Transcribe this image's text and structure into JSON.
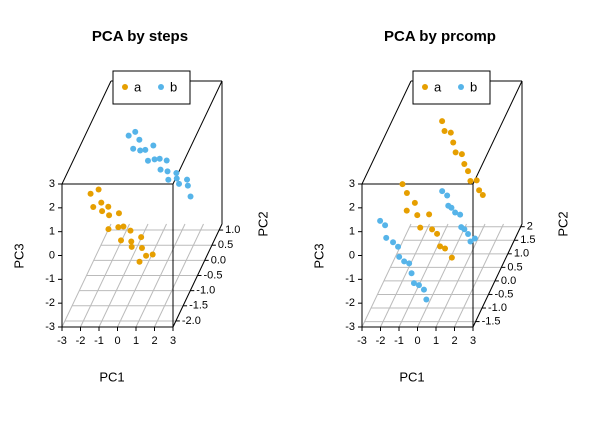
{
  "chart_data": [
    {
      "type": "scatter3d",
      "title": "PCA by steps",
      "xlabel": "PC1",
      "ylabel": "PC2",
      "zlabel": "PC3",
      "xlim": [
        -3,
        3
      ],
      "xticks": [
        -3,
        -2,
        -1,
        0,
        1,
        2,
        3
      ],
      "ylim": [
        -2.2,
        1.2
      ],
      "yticks": [
        {
          "value": -2,
          "label": "-2.0"
        },
        -1.5,
        {
          "value": -1,
          "label": "-1.0"
        },
        -0.5,
        {
          "value": 0,
          "label": "0.0"
        },
        0.5,
        {
          "value": 1,
          "label": "1.0"
        }
      ],
      "zlim": [
        -3,
        3
      ],
      "zticks": [
        -3,
        -2,
        -1,
        0,
        1,
        2,
        3
      ],
      "grid": true,
      "legend": "top",
      "series": [
        {
          "name": "a",
          "color": "#E69F00",
          "x": [
            -2.0,
            -1.8,
            -1.7,
            -1.5,
            -1.3,
            -1.2,
            -1.0,
            -0.8,
            -0.7,
            -0.5,
            -0.3,
            -0.2,
            0.0,
            0.2,
            0.3,
            0.5,
            0.7,
            0.8,
            1.0,
            1.2
          ],
          "y": [
            -1.5,
            -1.2,
            -1.7,
            -1.4,
            -1.6,
            -1.3,
            -1.5,
            -1.8,
            -1.2,
            -1.5,
            -1.4,
            -1.7,
            -1.3,
            -1.5,
            -1.6,
            -1.2,
            -1.4,
            -1.7,
            -1.5,
            -1.3
          ],
          "z": [
            1.7,
            1.5,
            1.4,
            1.2,
            1.1,
            0.9,
            0.8,
            0.6,
            0.5,
            0.3,
            0.2,
            0.0,
            -0.1,
            -0.3,
            -0.4,
            -0.5,
            -0.7,
            -0.9,
            -0.9,
            -1.1
          ]
        },
        {
          "name": "b",
          "color": "#56B4E9",
          "x": [
            -1.5,
            -1.3,
            -1.1,
            -1.0,
            -0.8,
            -0.6,
            -0.4,
            -0.3,
            -0.1,
            0.1,
            0.3,
            0.4,
            0.6,
            0.8,
            1.0,
            1.1,
            1.3,
            1.5,
            1.7,
            2.0
          ],
          "y": [
            0.5,
            0.7,
            0.3,
            0.6,
            0.4,
            0.5,
            0.8,
            0.3,
            0.5,
            0.6,
            0.4,
            0.7,
            0.5,
            0.3,
            0.6,
            0.5,
            0.4,
            0.7,
            0.5,
            0.3
          ],
          "z": [
            1.6,
            1.5,
            1.3,
            1.3,
            1.1,
            1.0,
            0.8,
            0.8,
            0.6,
            0.5,
            0.3,
            0.3,
            0.1,
            0.0,
            -0.1,
            -0.2,
            -0.3,
            -0.5,
            -0.5,
            -0.7
          ]
        }
      ]
    },
    {
      "type": "scatter3d",
      "title": "PCA by prcomp",
      "xlabel": "PC1",
      "ylabel": "PC2",
      "zlabel": "PC3",
      "xlim": [
        -3,
        3
      ],
      "xticks": [
        -3,
        -2,
        -1,
        0,
        1,
        2,
        3
      ],
      "ylim": [
        -1.7,
        2.1
      ],
      "yticks": [
        -1.5,
        {
          "value": -1,
          "label": "-1.0"
        },
        -0.5,
        {
          "value": 0,
          "label": "0.0"
        },
        0.5,
        {
          "value": 1,
          "label": "1.0"
        },
        1.5,
        2
      ],
      "zlim": [
        -3,
        3
      ],
      "zticks": [
        -3,
        -2,
        -1,
        0,
        1,
        2,
        3
      ],
      "grid": true,
      "legend": "top",
      "series": [
        {
          "name": "a",
          "color": "#E69F00",
          "x": [
            -0.9,
            -0.7,
            -0.5,
            -0.3,
            -0.1,
            0.1,
            0.3,
            0.5,
            0.7,
            0.9,
            1.1,
            1.3,
            -1.3,
            -1.2,
            -1.0,
            -0.7,
            -0.5,
            -0.2,
            0.0,
            0.3,
            0.5,
            0.8,
            1.0,
            1.3
          ],
          "y": [
            1.5,
            1.4,
            1.6,
            1.5,
            1.4,
            1.6,
            1.5,
            1.5,
            1.4,
            1.6,
            1.5,
            1.5,
            -1.0,
            -0.8,
            -1.1,
            -0.9,
            -1.0,
            -1.2,
            -0.8,
            -1.0,
            -0.9,
            -1.1,
            -1.0,
            -0.9
          ],
          "z": [
            2.0,
            1.7,
            1.4,
            1.1,
            0.8,
            0.5,
            0.2,
            -0.1,
            -0.4,
            -0.6,
            -0.9,
            -1.1,
            2.2,
            1.6,
            1.2,
            1.3,
            0.9,
            0.6,
            0.7,
            0.3,
            0.0,
            -0.3,
            -0.5,
            -1.0
          ]
        },
        {
          "name": "b",
          "color": "#56B4E9",
          "x": [
            -0.2,
            0.0,
            0.2,
            0.3,
            0.5,
            0.7,
            0.9,
            1.0,
            1.2,
            1.4,
            1.5,
            -2.3,
            -2.1,
            -1.9,
            -1.6,
            -1.4,
            -1.2,
            -1.0,
            -0.8,
            -0.6,
            -0.4,
            -0.2,
            0.0,
            0.2
          ],
          "y": [
            0.5,
            0.6,
            0.4,
            0.5,
            0.5,
            0.6,
            0.4,
            0.5,
            0.5,
            0.4,
            0.6,
            -1.3,
            -1.2,
            -1.4,
            -1.3,
            -1.2,
            -1.4,
            -1.3,
            -1.2,
            -1.3,
            -1.4,
            -1.3,
            -1.2,
            -1.3
          ],
          "z": [
            0.2,
            -0.1,
            -0.3,
            -0.5,
            -0.7,
            -0.9,
            -1.2,
            -1.4,
            -1.6,
            -1.8,
            -1.9,
            1.0,
            0.7,
            0.4,
            0.1,
            -0.2,
            -0.4,
            -0.7,
            -0.9,
            -1.2,
            -1.5,
            -1.7,
            -2.0,
            -2.3
          ]
        }
      ]
    }
  ]
}
